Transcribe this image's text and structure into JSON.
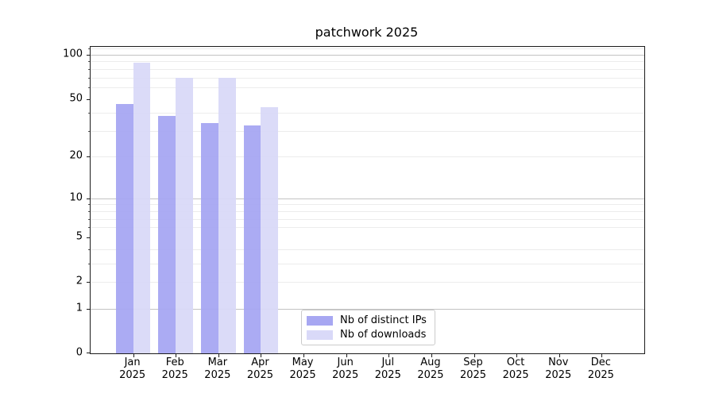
{
  "chart_data": {
    "type": "bar",
    "title": "patchwork 2025",
    "months": [
      "Jan",
      "Feb",
      "Mar",
      "Apr",
      "May",
      "Jun",
      "Jul",
      "Aug",
      "Sep",
      "Oct",
      "Nov",
      "Dec"
    ],
    "year": "2025",
    "series": [
      {
        "name": "Nb of distinct IPs",
        "color": "#a7a7f2",
        "values": [
          46,
          38,
          34,
          33,
          0,
          0,
          0,
          0,
          0,
          0,
          0,
          0
        ]
      },
      {
        "name": "Nb of downloads",
        "color": "#d9d9f8",
        "values": [
          88,
          70,
          70,
          44,
          0,
          0,
          0,
          0,
          0,
          0,
          0,
          0
        ]
      }
    ],
    "y_axis": {
      "scale": "log1p",
      "max": 113,
      "tick_labels": [
        0,
        1,
        2,
        5,
        10,
        20,
        50,
        100
      ],
      "major_grid_ticks": [
        1,
        10,
        100
      ],
      "minor_grid_ticks": [
        2,
        3,
        4,
        6,
        7,
        8,
        9,
        20,
        30,
        40,
        60,
        70,
        80,
        90,
        110
      ]
    },
    "grid": {
      "visible": true,
      "major_color": "#c3c3c3",
      "minor_color": "#ececec"
    },
    "legend": {
      "position": "inside-bottom-center"
    }
  }
}
